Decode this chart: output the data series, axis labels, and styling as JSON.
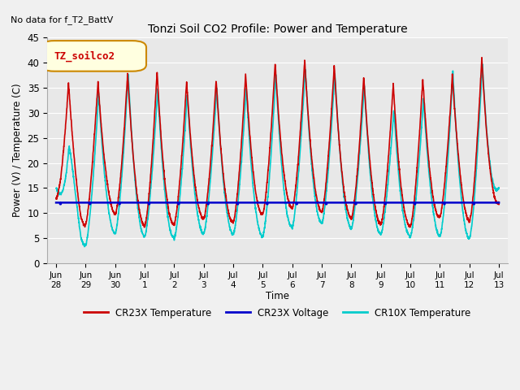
{
  "title": "Tonzi Soil CO2 Profile: Power and Temperature",
  "subtitle": "No data for f_T2_BattV",
  "ylabel": "Power (V) / Temperature (C)",
  "xlabel": "Time",
  "ylim": [
    0,
    45
  ],
  "background_color": "#f0f0f0",
  "plot_bg_color": "#e8e8e8",
  "legend_label": "TZ_soilco2",
  "x_tick_labels": [
    "Jun\n28",
    "Jun\n29",
    "Jun\n30",
    "Jul\n1",
    "Jul\n2",
    "Jul\n3",
    "Jul\n4",
    "Jul\n5",
    "Jul\n6",
    "Jul\n7",
    "Jul\n8",
    "Jul\n9",
    "Jul\n10",
    "Jul\n11",
    "Jul\n12",
    "Jul\n13"
  ],
  "cr23x_color": "#cc0000",
  "cr23x_voltage_color": "#0000cc",
  "cr10x_color": "#00cccc",
  "line_width": 1.2,
  "voltage_level": 12.1
}
